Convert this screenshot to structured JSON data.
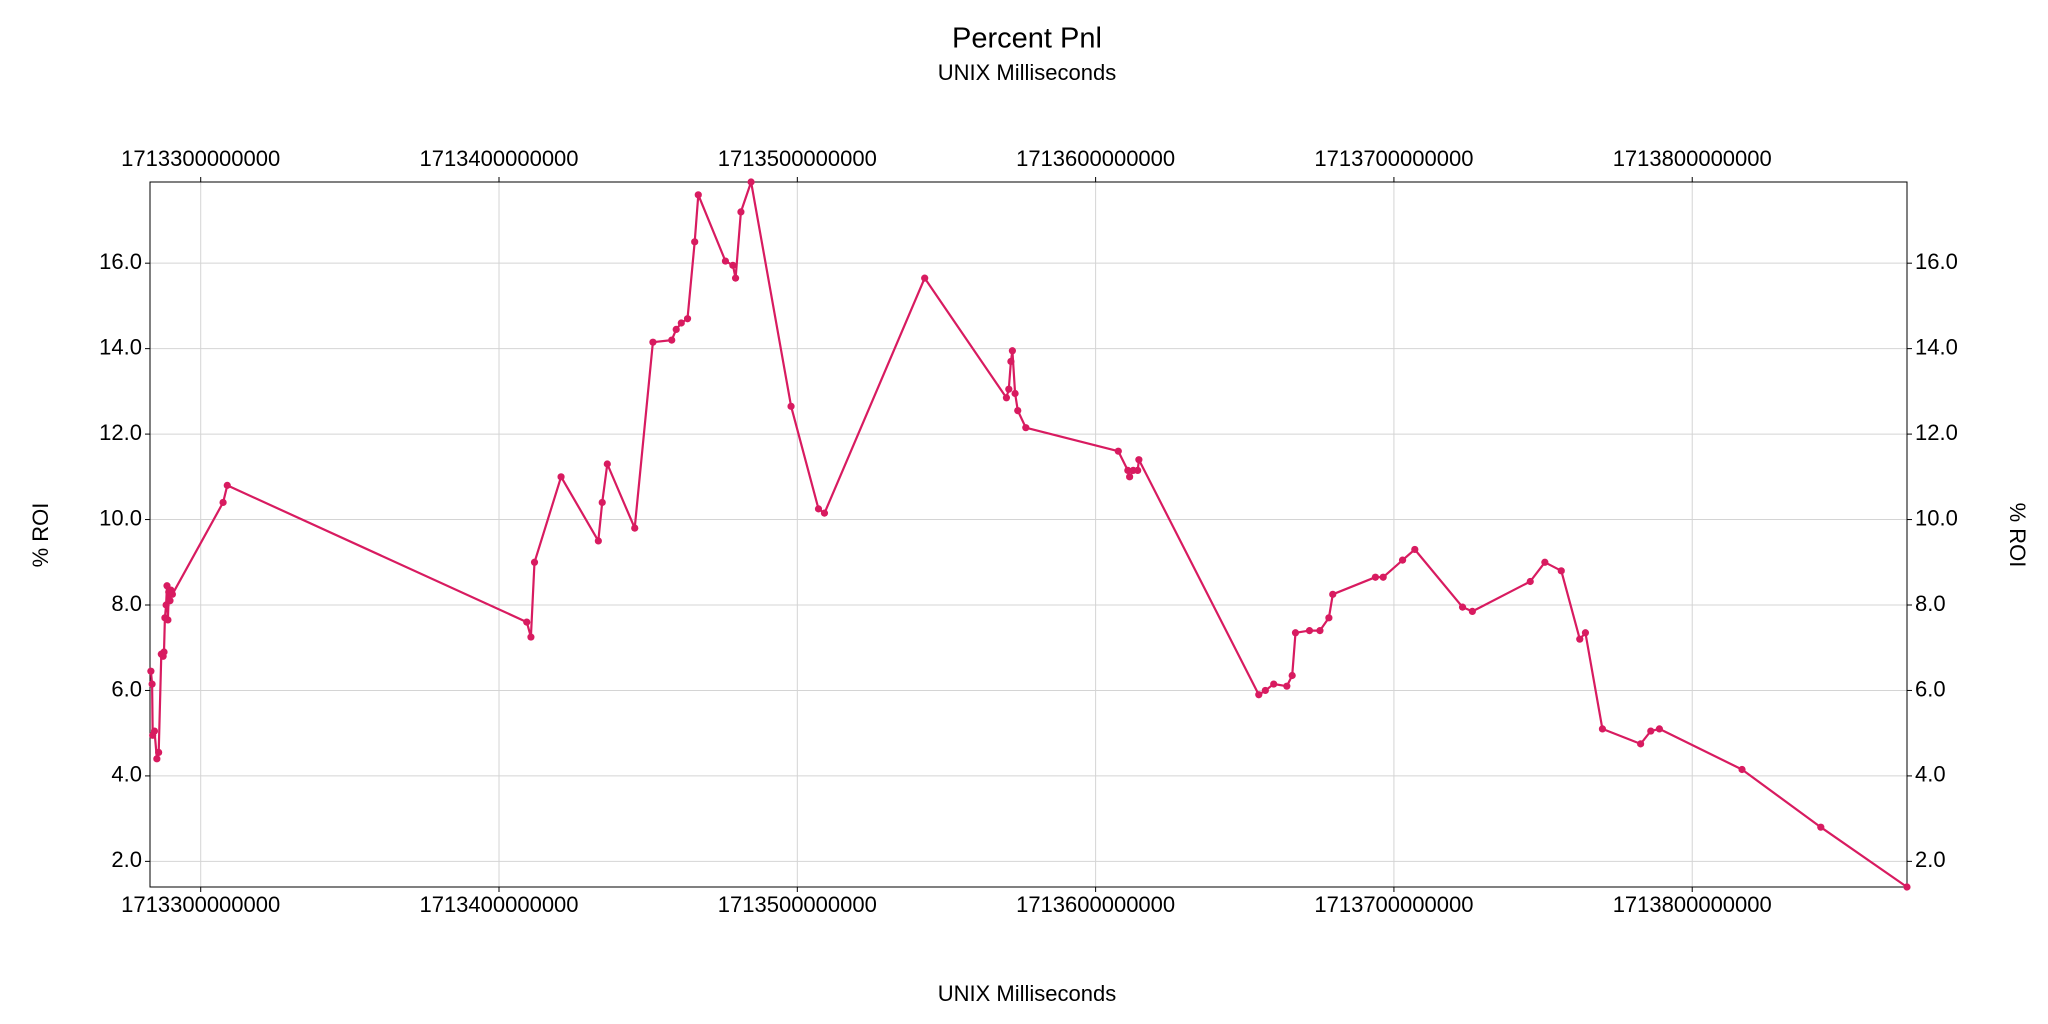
{
  "chart_data": {
    "type": "line",
    "title": "Percent Pnl",
    "subtitle": "UNIX Milliseconds",
    "xlabel": "UNIX Milliseconds",
    "ylabel": "% ROI",
    "xlim": [
      1713283000000,
      1713872000000
    ],
    "ylim": [
      1.4,
      17.9
    ],
    "x_ticks": [
      1713300000000,
      1713400000000,
      1713500000000,
      1713600000000,
      1713700000000,
      1713800000000
    ],
    "x_tick_labels": [
      "1713300000000",
      "1713400000000",
      "1713500000000",
      "1713600000000",
      "1713700000000",
      "1713800000000"
    ],
    "y_ticks": [
      2.0,
      4.0,
      6.0,
      8.0,
      10.0,
      12.0,
      14.0,
      16.0
    ],
    "y_tick_labels": [
      "2.0",
      "4.0",
      "6.0",
      "8.0",
      "10.0",
      "12.0",
      "14.0",
      "16.0"
    ],
    "grid": true,
    "color": "#d81b60",
    "series": [
      {
        "x": [
          1713283300000,
          1713283700000,
          1713283900000,
          1713284500000,
          1713285300000,
          1713285900000,
          1713286800000,
          1713287400000,
          1713287700000,
          1713288000000,
          1713288400000,
          1713288700000,
          1713289000000,
          1713289300000,
          1713289700000,
          1713290000000,
          1713290500000,
          1713307500000,
          1713308900000,
          1713409300000,
          1713410700000,
          1713411900000,
          1713420800000,
          1713433300000,
          1713434600000,
          1713436300000,
          1713445500000,
          1713451600000,
          1713457900000,
          1713459400000,
          1713461100000,
          1713463200000,
          1713465600000,
          1713466800000,
          1713475900000,
          1713478400000,
          1713479300000,
          1713481100000,
          1713484500000,
          1713497900000,
          1713507100000,
          1713509100000,
          1713542700000,
          1713570100000,
          1713570900000,
          1713571600000,
          1713572100000,
          1713573000000,
          1713573900000,
          1713576600000,
          1713607600000,
          1713610800000,
          1713611400000,
          1713612600000,
          1713614100000,
          1713614500000,
          1713654700000,
          1713656900000,
          1713659700000,
          1713664100000,
          1713665900000,
          1713667000000,
          1713671700000,
          1713675200000,
          1713678200000,
          1713679500000,
          1713693800000,
          1713696400000,
          1713702900000,
          1713707000000,
          1713723000000,
          1713726300000,
          1713745700000,
          1713750600000,
          1713756100000,
          1713762300000,
          1713764200000,
          1713769900000,
          1713782700000,
          1713786100000,
          1713789000000,
          1713816700000,
          1713843100000,
          1713872000000
        ],
        "y": [
          6.45,
          6.15,
          4.95,
          5.05,
          4.4,
          4.55,
          6.85,
          6.8,
          6.9,
          7.7,
          8.0,
          8.45,
          7.65,
          8.3,
          8.1,
          8.35,
          8.25,
          10.4,
          10.8,
          7.6,
          7.25,
          9.0,
          11.0,
          9.5,
          10.4,
          11.3,
          9.8,
          14.15,
          14.2,
          14.45,
          14.6,
          14.7,
          16.5,
          17.6,
          16.05,
          15.95,
          15.65,
          17.2,
          17.9,
          12.65,
          10.25,
          10.15,
          15.65,
          12.85,
          13.05,
          13.7,
          13.95,
          12.95,
          12.55,
          12.15,
          11.6,
          11.15,
          11.0,
          11.15,
          11.15,
          11.4,
          5.9,
          6.0,
          6.15,
          6.1,
          6.35,
          7.35,
          7.4,
          7.4,
          7.7,
          8.25,
          8.65,
          8.65,
          9.05,
          9.3,
          7.95,
          7.85,
          8.55,
          9.0,
          8.8,
          7.2,
          7.35,
          5.1,
          4.75,
          5.05,
          5.1,
          4.15,
          2.8,
          1.4
        ]
      }
    ]
  }
}
